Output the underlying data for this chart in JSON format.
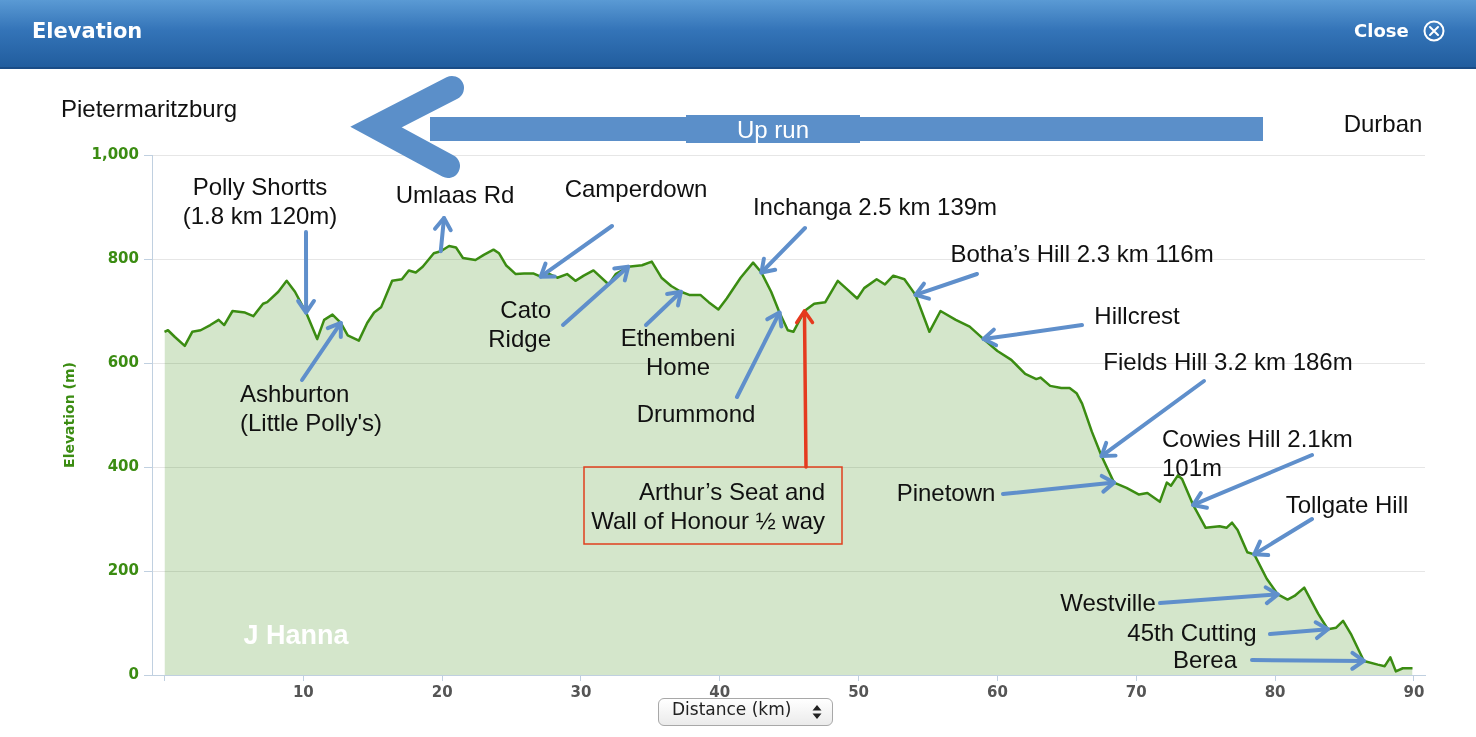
{
  "chart_data": {
    "type": "area",
    "title": "Elevation",
    "xlabel": "Distance (km)",
    "ylabel": "Elevation (m)",
    "color": "#3b8c12",
    "x": [
      0,
      0.25,
      0.75,
      1.46,
      2.0,
      2.6,
      3.3,
      3.9,
      4.3,
      4.9,
      5.8,
      6.4,
      7.1,
      7.4,
      8.2,
      8.8,
      9.4,
      10.2,
      11.0,
      11.5,
      12.1,
      12.7,
      13.2,
      14.0,
      14.6,
      15.1,
      15.6,
      16.4,
      17.1,
      17.6,
      18.1,
      18.6,
      19.4,
      19.9,
      20.5,
      21.0,
      21.5,
      22.4,
      23.0,
      23.7,
      24.1,
      24.6,
      25.3,
      25.9,
      26.6,
      27.1,
      27.5,
      28.3,
      29.0,
      29.6,
      30.2,
      30.9,
      32.0,
      32.5,
      33.4,
      34.4,
      35.1,
      35.8,
      36.5,
      37.2,
      37.8,
      38.6,
      39.2,
      39.9,
      40.5,
      41.5,
      42.4,
      43.0,
      43.7,
      44.3,
      44.9,
      45.3,
      45.7,
      46.1,
      46.8,
      47.6,
      48.5,
      49.2,
      49.9,
      50.4,
      51.3,
      51.9,
      52.5,
      53.3,
      54.1,
      55.1,
      55.9,
      57.0,
      58.0,
      59.0,
      60.0,
      61.0,
      62.0,
      62.8,
      63.1,
      63.8,
      64.6,
      65.2,
      65.7,
      66.1,
      66.8,
      67.5,
      68.4,
      69.3,
      70.2,
      70.8,
      71.7,
      72.2,
      72.5,
      73.0,
      73.3,
      74.1,
      75.0,
      76.0,
      76.5,
      76.9,
      77.3,
      78.0,
      78.5,
      79.4,
      80.2,
      80.9,
      81.4,
      82.1,
      83.1,
      83.8,
      84.4,
      84.9,
      85.5,
      86.4,
      87.4,
      87.9,
      88.3,
      88.7,
      89.2,
      89.9
    ],
    "values": [
      660,
      663,
      650,
      633,
      660,
      663,
      673,
      683,
      673,
      700,
      697,
      690,
      714,
      717,
      737,
      758,
      737,
      697,
      646,
      683,
      693,
      677,
      653,
      643,
      677,
      697,
      707,
      758,
      761,
      778,
      774,
      785,
      811,
      815,
      825,
      822,
      802,
      798,
      808,
      818,
      811,
      788,
      771,
      772,
      772,
      766,
      774,
      764,
      771,
      758,
      768,
      778,
      751,
      771,
      785,
      788,
      795,
      764,
      748,
      737,
      731,
      731,
      717,
      703,
      724,
      764,
      793,
      774,
      737,
      697,
      663,
      660,
      680,
      700,
      714,
      717,
      758,
      741,
      724,
      744,
      761,
      751,
      768,
      761,
      731,
      660,
      700,
      683,
      670,
      646,
      623,
      606,
      579,
      569,
      572,
      556,
      552,
      552,
      542,
      522,
      468,
      421,
      370,
      360,
      347,
      350,
      333,
      370,
      364,
      384,
      377,
      327,
      283,
      286,
      283,
      293,
      279,
      236,
      232,
      185,
      155,
      145,
      152,
      168,
      118,
      88,
      91,
      104,
      77,
      27,
      20,
      17,
      34,
      7,
      13,
      13
    ],
    "xlim": [
      -0.9,
      90.8
    ],
    "xticks": [
      {
        "value": 0,
        "label": null
      },
      10,
      20,
      30,
      40,
      50,
      60,
      70,
      80,
      90
    ],
    "ylim": [
      0,
      1000
    ],
    "yticks": [
      0,
      200,
      400,
      600,
      800,
      {
        "value": 1000,
        "label": "1,000"
      }
    ],
    "grid": "y",
    "annotations": [
      "Pietermaritzburg",
      "Up run",
      "Durban",
      {
        "text": "Polly Shortts (1.8 km 120m)",
        "x": 10.2,
        "y": 697
      },
      {
        "text": "Umlaas Rd",
        "x": 19.9,
        "y": 815
      },
      {
        "text": "Camperdown",
        "x": 27.1,
        "y": 766
      },
      {
        "text": "Inchanga 2.5 km 139m",
        "x": 43.0,
        "y": 774
      },
      {
        "text": "Botha’s Hill 2.3 km 116m",
        "x": 54.1,
        "y": 731
      },
      {
        "text": "Cato Ridge",
        "x": 33.4,
        "y": 785
      },
      {
        "text": "Ethembeni Home",
        "x": 37.2,
        "y": 737
      },
      {
        "text": "Hillcrest",
        "x": 59.0,
        "y": 646
      },
      {
        "text": "Fields Hill 3.2 km 186m",
        "x": 67.5,
        "y": 421
      },
      {
        "text": "Ashburton (Little Polly's)",
        "x": 12.7,
        "y": 677
      },
      {
        "text": "Drummond",
        "x": 44.3,
        "y": 697
      },
      {
        "text": "Cowies Hill 2.1km 101m",
        "x": 74.1,
        "y": 327
      },
      {
        "text": "Arthur’s Seat and Wall of Honour ½ way",
        "x": 46.1,
        "y": 700
      },
      {
        "text": "Pinetown",
        "x": 68.4,
        "y": 370
      },
      {
        "text": "Tollgate Hill",
        "x": 78.5,
        "y": 232
      },
      {
        "text": "Westville",
        "x": 80.2,
        "y": 155
      },
      {
        "text": "45th Cutting",
        "x": 83.8,
        "y": 88
      },
      {
        "text": "Berea",
        "x": 86.4,
        "y": 27
      },
      "J Hanna",
      "Close"
    ]
  }
}
